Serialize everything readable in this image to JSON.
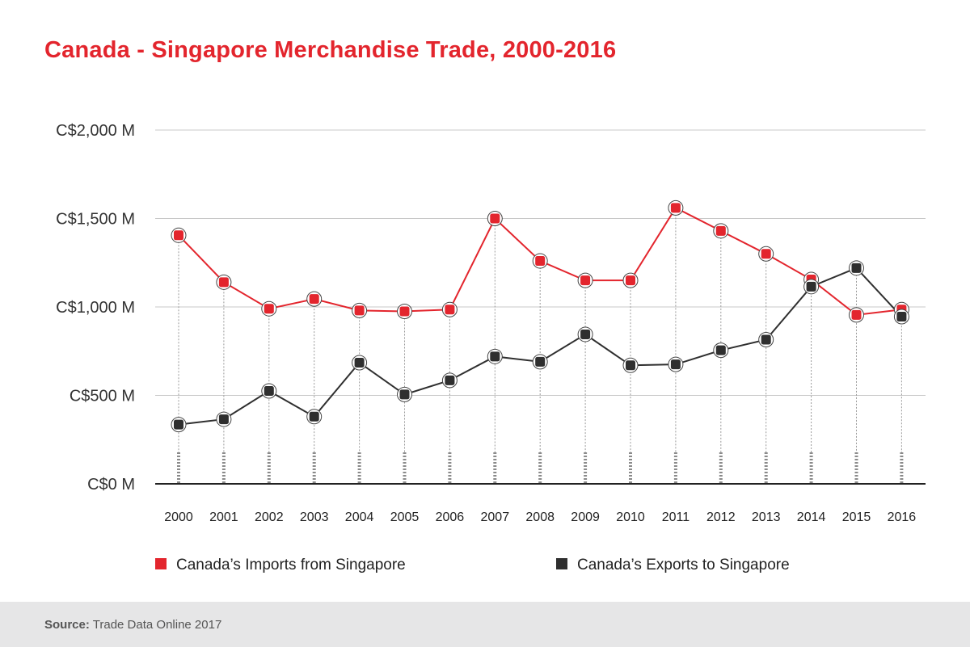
{
  "chart_data": {
    "type": "line",
    "title": "Canada - Singapore Merchandise Trade, 2000-2016",
    "xlabel": "",
    "ylabel": "",
    "ylim": [
      0,
      2000
    ],
    "yticks": [
      {
        "value": 0,
        "label": "C$0 M"
      },
      {
        "value": 500,
        "label": "C$500 M"
      },
      {
        "value": 1000,
        "label": "C$1,000 M"
      },
      {
        "value": 1500,
        "label": "C$1,500 M"
      },
      {
        "value": 2000,
        "label": "C$2,000 M"
      }
    ],
    "categories": [
      "2000",
      "2001",
      "2002",
      "2003",
      "2004",
      "2005",
      "2006",
      "2007",
      "2008",
      "2009",
      "2010",
      "2011",
      "2012",
      "2013",
      "2014",
      "2015",
      "2016"
    ],
    "series": [
      {
        "name": "Canada’s Imports from Singapore",
        "color": "#e3252d",
        "values": [
          1405,
          1140,
          990,
          1045,
          980,
          975,
          985,
          1500,
          1260,
          1150,
          1150,
          1560,
          1430,
          1300,
          1155,
          955,
          985
        ]
      },
      {
        "name": "Canada’s Exports to Singapore",
        "color": "#2f2f2f",
        "values": [
          335,
          365,
          525,
          380,
          685,
          505,
          585,
          720,
          690,
          845,
          670,
          675,
          755,
          815,
          1115,
          1220,
          945
        ]
      }
    ],
    "grid": true,
    "legend_position": "bottom"
  },
  "source": {
    "label": "Source:",
    "text": " Trade Data Online 2017"
  }
}
